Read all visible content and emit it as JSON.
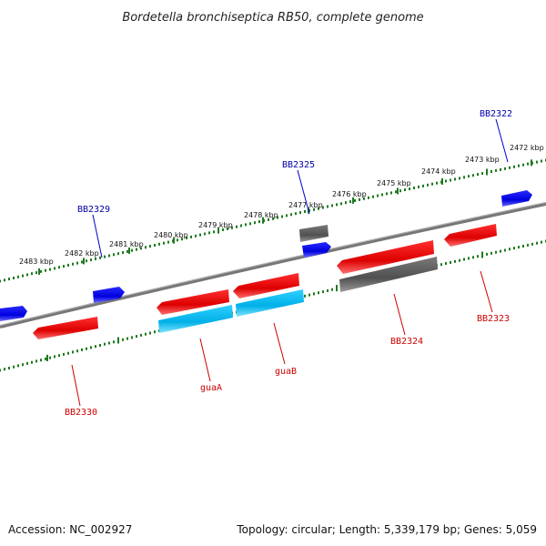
{
  "title": "Bordetella bronchiseptica RB50, complete genome",
  "footer": {
    "accession": "Accession: NC_002927",
    "summary": "Topology: circular; Length: 5,339,179 bp; Genes: 5,059"
  },
  "colors": {
    "backbone": "#7a7a7a",
    "tick": "#1f7a1f",
    "forward_gene": "#0000ee",
    "reverse_gene": "#ee0000",
    "rna_gene": "#00bbee",
    "other_gene": "#555555",
    "label_blue": "#0000aa",
    "label_red": "#cc0000"
  },
  "scale_labels": [
    "2472 kbp",
    "2473 kbp",
    "2474 kbp",
    "2475 kbp",
    "2476 kbp",
    "2477 kbp",
    "2478 kbp",
    "2479 kbp",
    "2480 kbp",
    "2481 kbp",
    "2482 kbp",
    "2483 kbp"
  ],
  "gene_labels": {
    "bb2322": "BB2322",
    "bb2325": "BB2325",
    "bb2329": "BB2329",
    "bb2323": "BB2323",
    "bb2324": "BB2324",
    "guaA": "guaA",
    "guaB": "guaB",
    "bb2330": "BB2330"
  }
}
